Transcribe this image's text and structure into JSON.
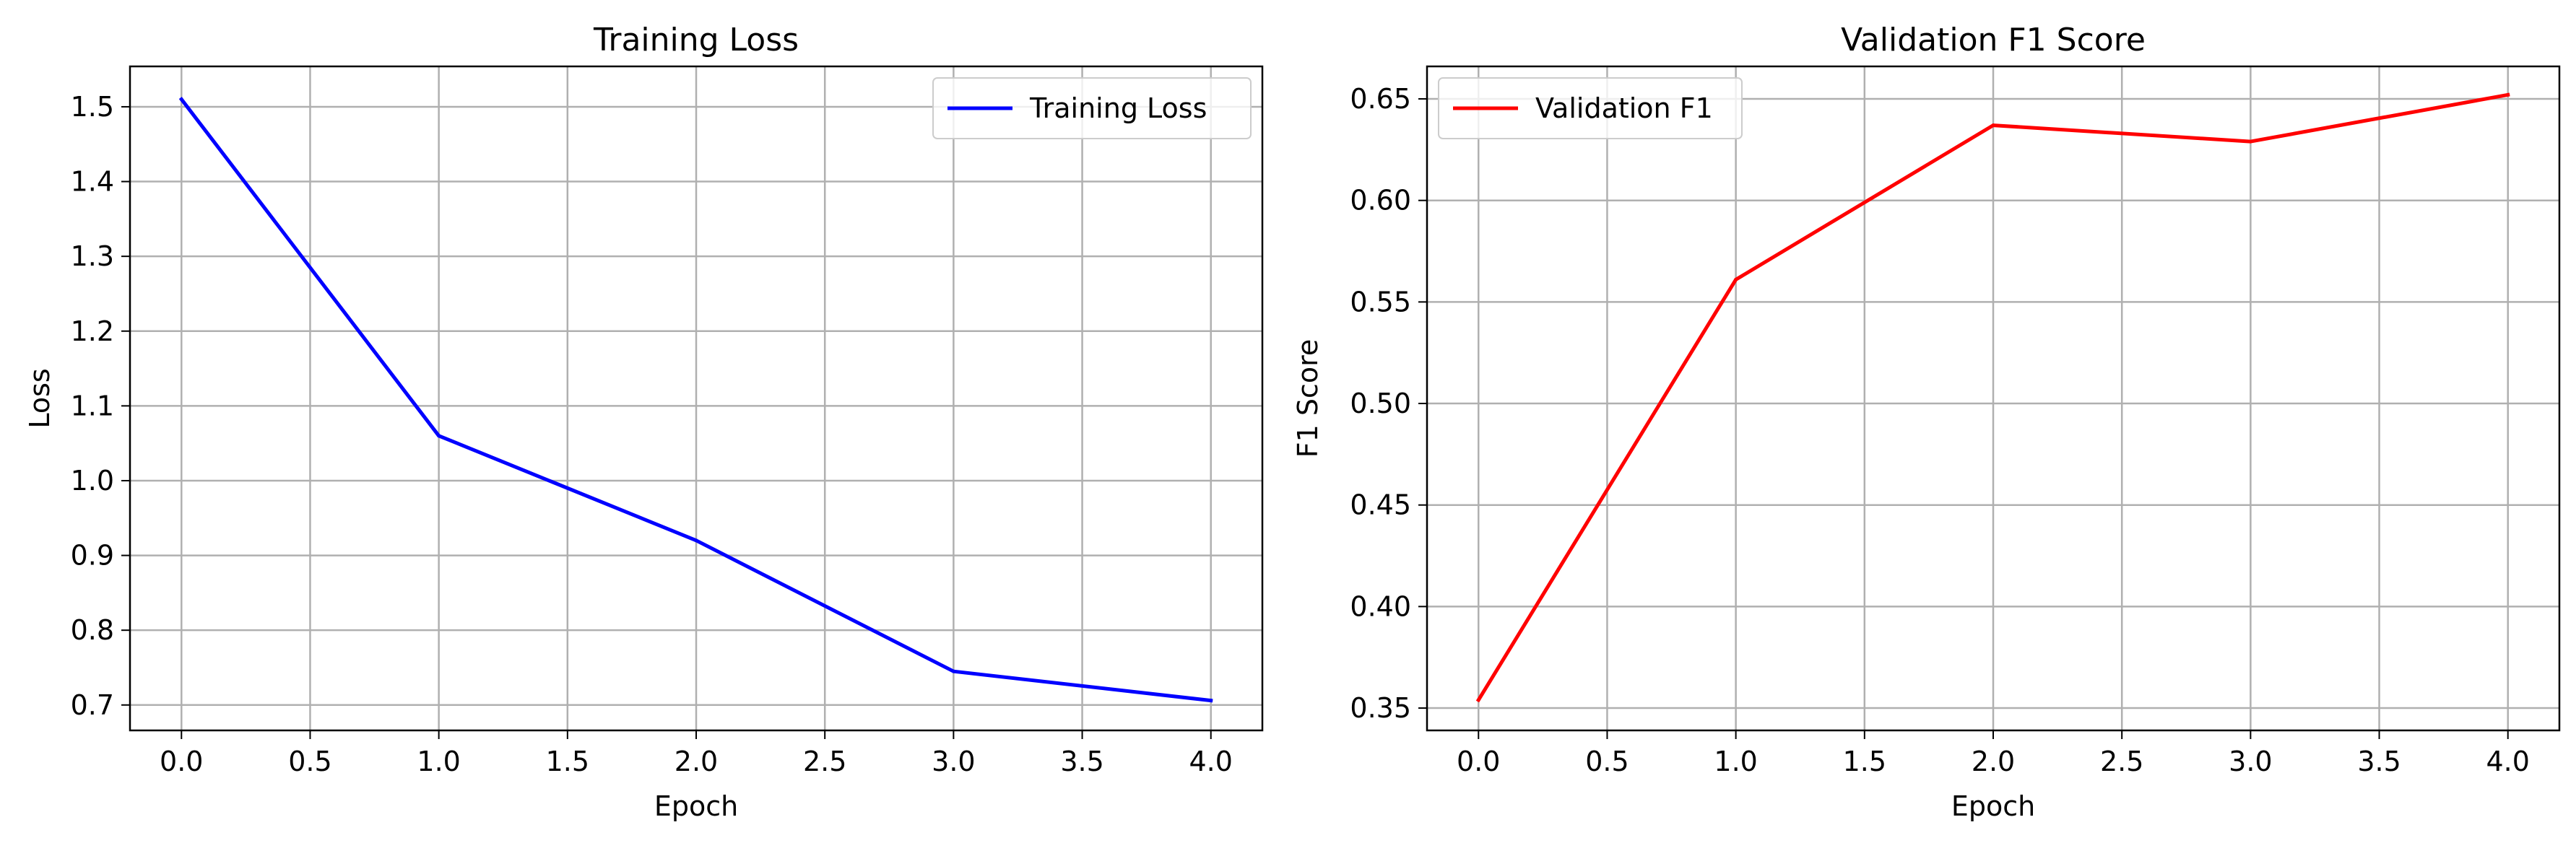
{
  "chart_data": [
    {
      "type": "line",
      "title": "Training Loss",
      "xlabel": "Epoch",
      "ylabel": "Loss",
      "xlim": [
        -0.2,
        4.2
      ],
      "ylim": [
        0.666,
        1.554
      ],
      "xticks": [
        0.0,
        0.5,
        1.0,
        1.5,
        2.0,
        2.5,
        3.0,
        3.5,
        4.0
      ],
      "xtick_labels": [
        "0.0",
        "0.5",
        "1.0",
        "1.5",
        "2.0",
        "2.5",
        "3.0",
        "3.5",
        "4.0"
      ],
      "yticks": [
        0.7,
        0.8,
        0.9,
        1.0,
        1.1,
        1.2,
        1.3,
        1.4,
        1.5
      ],
      "ytick_labels": [
        "0.7",
        "0.8",
        "0.9",
        "1.0",
        "1.1",
        "1.2",
        "1.3",
        "1.4",
        "1.5"
      ],
      "grid": true,
      "legend_position": "top-right",
      "series": [
        {
          "name": "Training Loss",
          "color": "#0000ff",
          "x": [
            0,
            1,
            2,
            3,
            4
          ],
          "y": [
            1.51,
            1.06,
            0.92,
            0.745,
            0.706
          ]
        }
      ]
    },
    {
      "type": "line",
      "title": "Validation F1 Score",
      "xlabel": "Epoch",
      "ylabel": "F1 Score",
      "xlim": [
        -0.2,
        4.2
      ],
      "ylim": [
        0.339,
        0.666
      ],
      "xticks": [
        0.0,
        0.5,
        1.0,
        1.5,
        2.0,
        2.5,
        3.0,
        3.5,
        4.0
      ],
      "xtick_labels": [
        "0.0",
        "0.5",
        "1.0",
        "1.5",
        "2.0",
        "2.5",
        "3.0",
        "3.5",
        "4.0"
      ],
      "yticks": [
        0.35,
        0.4,
        0.45,
        0.5,
        0.55,
        0.6,
        0.65
      ],
      "ytick_labels": [
        "0.35",
        "0.40",
        "0.45",
        "0.50",
        "0.55",
        "0.60",
        "0.65"
      ],
      "grid": true,
      "legend_position": "top-left",
      "series": [
        {
          "name": "Validation F1",
          "color": "#ff0000",
          "x": [
            0,
            1,
            2,
            3,
            4
          ],
          "y": [
            0.354,
            0.561,
            0.637,
            0.629,
            0.652
          ]
        }
      ]
    }
  ]
}
